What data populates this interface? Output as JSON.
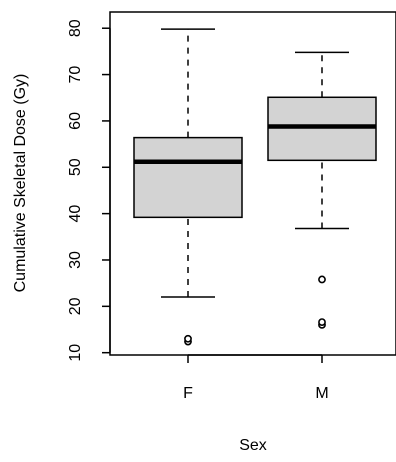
{
  "chart_data": {
    "type": "boxplot",
    "xlabel": "Sex",
    "ylabel": "Cumulative Skeletal Dose (Gy)",
    "categories": [
      "F",
      "M"
    ],
    "yticks": [
      10,
      20,
      30,
      40,
      50,
      60,
      70,
      80
    ],
    "ylim": [
      9.5,
      83.5
    ],
    "box_fill": "#d3d3d3",
    "boxes": [
      {
        "name": "F",
        "whisker_low": 22,
        "q1": 39.2,
        "median": 51.2,
        "q3": 56.4,
        "whisker_high": 79.8,
        "outliers": [
          12.4,
          13.0
        ]
      },
      {
        "name": "M",
        "whisker_low": 36.8,
        "q1": 51.5,
        "median": 58.8,
        "q3": 65.1,
        "whisker_high": 74.8,
        "outliers": [
          16.0,
          16.6,
          25.8
        ]
      }
    ],
    "grid": false,
    "legend": "none"
  }
}
